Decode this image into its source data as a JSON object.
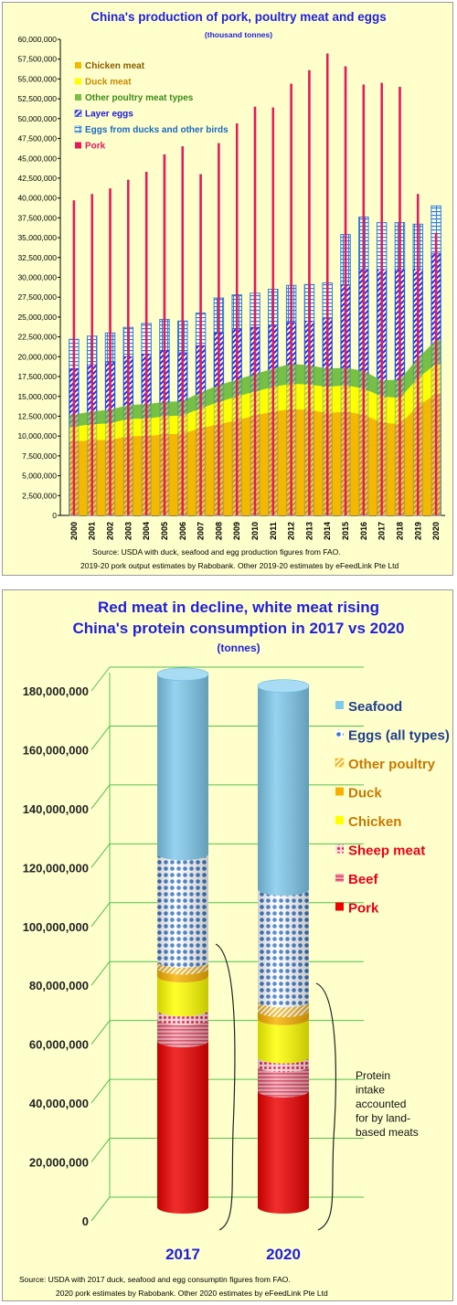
{
  "chart_data": [
    {
      "type": "bar",
      "title": "China's production of pork, poultry meat and eggs",
      "subtitle": "(thousand tonnes)",
      "ylim": [
        0,
        60000000
      ],
      "y_ticks": [
        "0",
        "2,500,000",
        "5,000,000",
        "7,500,000",
        "10,000,000",
        "12,500,000",
        "15,000,000",
        "17,500,000",
        "20,000,000",
        "22,500,000",
        "25,000,000",
        "27,500,000",
        "30,000,000",
        "32,500,000",
        "35,000,000",
        "37,500,000",
        "40,000,000",
        "42,500,000",
        "45,000,000",
        "47,500,000",
        "50,000,000",
        "52,500,000",
        "55,000,000",
        "57,500,000",
        "60,000,000"
      ],
      "categories": [
        "2000",
        "2001",
        "2002",
        "2003",
        "2004",
        "2005",
        "2006",
        "2007",
        "2008",
        "2009",
        "2010",
        "2011",
        "2012",
        "2013",
        "2014",
        "2015",
        "2016",
        "2017",
        "2018",
        "2019",
        "2020"
      ],
      "grid": false,
      "legend_position": "top-left",
      "stacked_series": [
        {
          "name": "Chicken meat",
          "color": "#f5b800",
          "values": [
            9300000,
            9500000,
            9500000,
            10000000,
            10000000,
            10200000,
            10300000,
            11000000,
            11500000,
            12000000,
            12600000,
            13100000,
            13400000,
            13300000,
            12900000,
            13100000,
            12700000,
            11700000,
            11500000,
            13800000,
            15300000
          ]
        },
        {
          "name": "Duck meat",
          "color": "#ffff00",
          "values": [
            1900000,
            2000000,
            2100000,
            2200000,
            2200000,
            2300000,
            2300000,
            2500000,
            2800000,
            3000000,
            3000000,
            3100000,
            3200000,
            3200000,
            3300000,
            3300000,
            3300000,
            3300000,
            3300000,
            3500000,
            3800000
          ]
        },
        {
          "name": "Other poultry meat types",
          "color": "#77c043",
          "values": [
            1500000,
            1600000,
            1700000,
            1700000,
            1800000,
            1800000,
            1800000,
            2000000,
            2100000,
            2100000,
            2200000,
            2300000,
            2500000,
            2400000,
            2300000,
            2200000,
            2200000,
            2000000,
            2300000,
            2500000,
            3000000
          ]
        }
      ],
      "overlay_series": [
        {
          "name": "Layer eggs",
          "color": "#2233dd",
          "values": [
            18500000,
            19000000,
            19300000,
            20000000,
            20300000,
            20800000,
            20500000,
            21400000,
            23000000,
            23500000,
            23700000,
            23900000,
            24300000,
            24500000,
            24800000,
            29000000,
            31000000,
            31000000,
            31000000,
            31000000,
            33000000
          ]
        },
        {
          "name": "Eggs from ducks and other birds",
          "color": "#2d7fd0",
          "values": [
            22200000,
            22600000,
            23000000,
            23700000,
            24200000,
            24700000,
            24500000,
            25500000,
            27400000,
            27800000,
            28000000,
            28500000,
            29000000,
            29100000,
            29300000,
            35400000,
            37600000,
            36900000,
            36900000,
            36700000,
            39000000
          ]
        },
        {
          "name": "Pork",
          "color": "#e6195a",
          "values": [
            39700000,
            40500000,
            41200000,
            42300000,
            43300000,
            45500000,
            46500000,
            43000000,
            46900000,
            49400000,
            51500000,
            51400000,
            54400000,
            56100000,
            58200000,
            56600000,
            54300000,
            54500000,
            54000000,
            40500000,
            35600000
          ]
        }
      ],
      "source_lines": [
        "Source: USDA with duck, seafood and egg production figures from FAO.",
        "2019-20 pork output estimates by Rabobank. Other 2019-20 estimates by eFeedLink Pte Ltd"
      ]
    },
    {
      "type": "bar",
      "title_line1": "Red meat in decline, white meat rising",
      "title_line2": "China's protein consumption in 2017 vs 2020",
      "subtitle": "(tonnes)",
      "ylim": [
        0,
        180000000
      ],
      "y_ticks": [
        "0",
        "20,000,000",
        "40,000,000",
        "60,000,000",
        "80,000,000",
        "100,000,000",
        "120,000,000",
        "140,000,000",
        "160,000,000",
        "180,000,000"
      ],
      "categories": [
        "2017",
        "2020"
      ],
      "grid": true,
      "legend_position": "right",
      "series": [
        {
          "name": "Pork",
          "color": "#ee0000",
          "label_color": "#e8001a",
          "values": [
            56500000,
            39500000
          ]
        },
        {
          "name": "Beef",
          "color": "#ec6d80",
          "label_color": "#e8001a",
          "values": [
            7500000,
            8500000
          ]
        },
        {
          "name": "Sheep meat",
          "color": "#e0526a",
          "label_color": "#e8001a",
          "values": [
            3000000,
            3000000
          ]
        },
        {
          "name": "Chicken",
          "color": "#ffff00",
          "label_color": "#c87800",
          "values": [
            11500000,
            13000000
          ]
        },
        {
          "name": "Duck",
          "color": "#f7b000",
          "label_color": "#c87800",
          "values": [
            2700000,
            2700000
          ]
        },
        {
          "name": "Other poultry",
          "color": "#fad88a",
          "label_color": "#c87800",
          "values": [
            2300000,
            3300000
          ]
        },
        {
          "name": "Eggs (all types)",
          "color": "#3a78c8",
          "label_color": "#1f3f8c",
          "values": [
            36500000,
            38000000
          ]
        },
        {
          "name": "Seafood",
          "color": "#7fc9ec",
          "label_color": "#1f3f8c",
          "values": [
            61000000,
            69000000
          ]
        }
      ],
      "annotation": [
        "Protein",
        "intake",
        "accounted",
        "for by land-",
        "based meats"
      ],
      "source_lines": [
        "Source: USDA with 2017 duck, seafood and egg consumptin figures from FAO.",
        "2020 pork estimates by Rabobank. Other 2020 estimates by eFeedLink Pte Ltd"
      ]
    }
  ]
}
